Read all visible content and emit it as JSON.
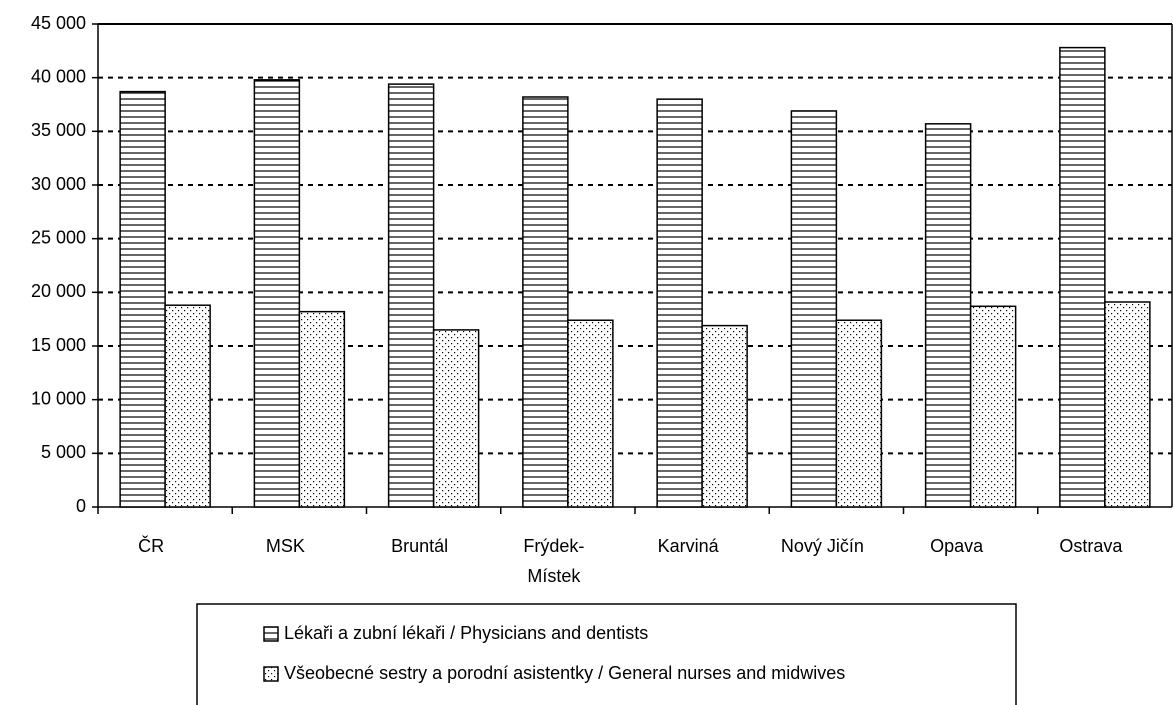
{
  "chart_data": {
    "type": "bar",
    "categories": [
      "ČR",
      "MSK",
      "Bruntál",
      "Frýdek-Místek",
      "Karviná",
      "Nový Jičín",
      "Opava",
      "Ostrava"
    ],
    "series": [
      {
        "name": "Lékaři a zubní lékaři / Physicians and dentists",
        "color": "#000000",
        "pattern": "horizontal",
        "values": [
          38700,
          39800,
          39400,
          38200,
          38000,
          36900,
          35700,
          42800
        ]
      },
      {
        "name": "Všeobecné sestry a porodní asistentky / General nurses and midwives",
        "color": "#000000",
        "pattern": "dots",
        "values": [
          18800,
          18200,
          16500,
          17400,
          16900,
          17400,
          18700,
          19100
        ]
      }
    ],
    "ylim": [
      0,
      45000
    ],
    "yticks": [
      0,
      {
        "value": 5000,
        "label": "5 000"
      },
      {
        "value": 10000,
        "label": "10 000"
      },
      {
        "value": 15000,
        "label": "15 000"
      },
      {
        "value": 20000,
        "label": "20 000"
      },
      {
        "value": 25000,
        "label": "25 000"
      },
      {
        "value": 30000,
        "label": "30 000"
      },
      {
        "value": 35000,
        "label": "35 000"
      },
      {
        "value": 40000,
        "label": "40 000"
      },
      {
        "value": 45000,
        "label": "45 000"
      }
    ],
    "grid": true,
    "legend": "bottom"
  }
}
